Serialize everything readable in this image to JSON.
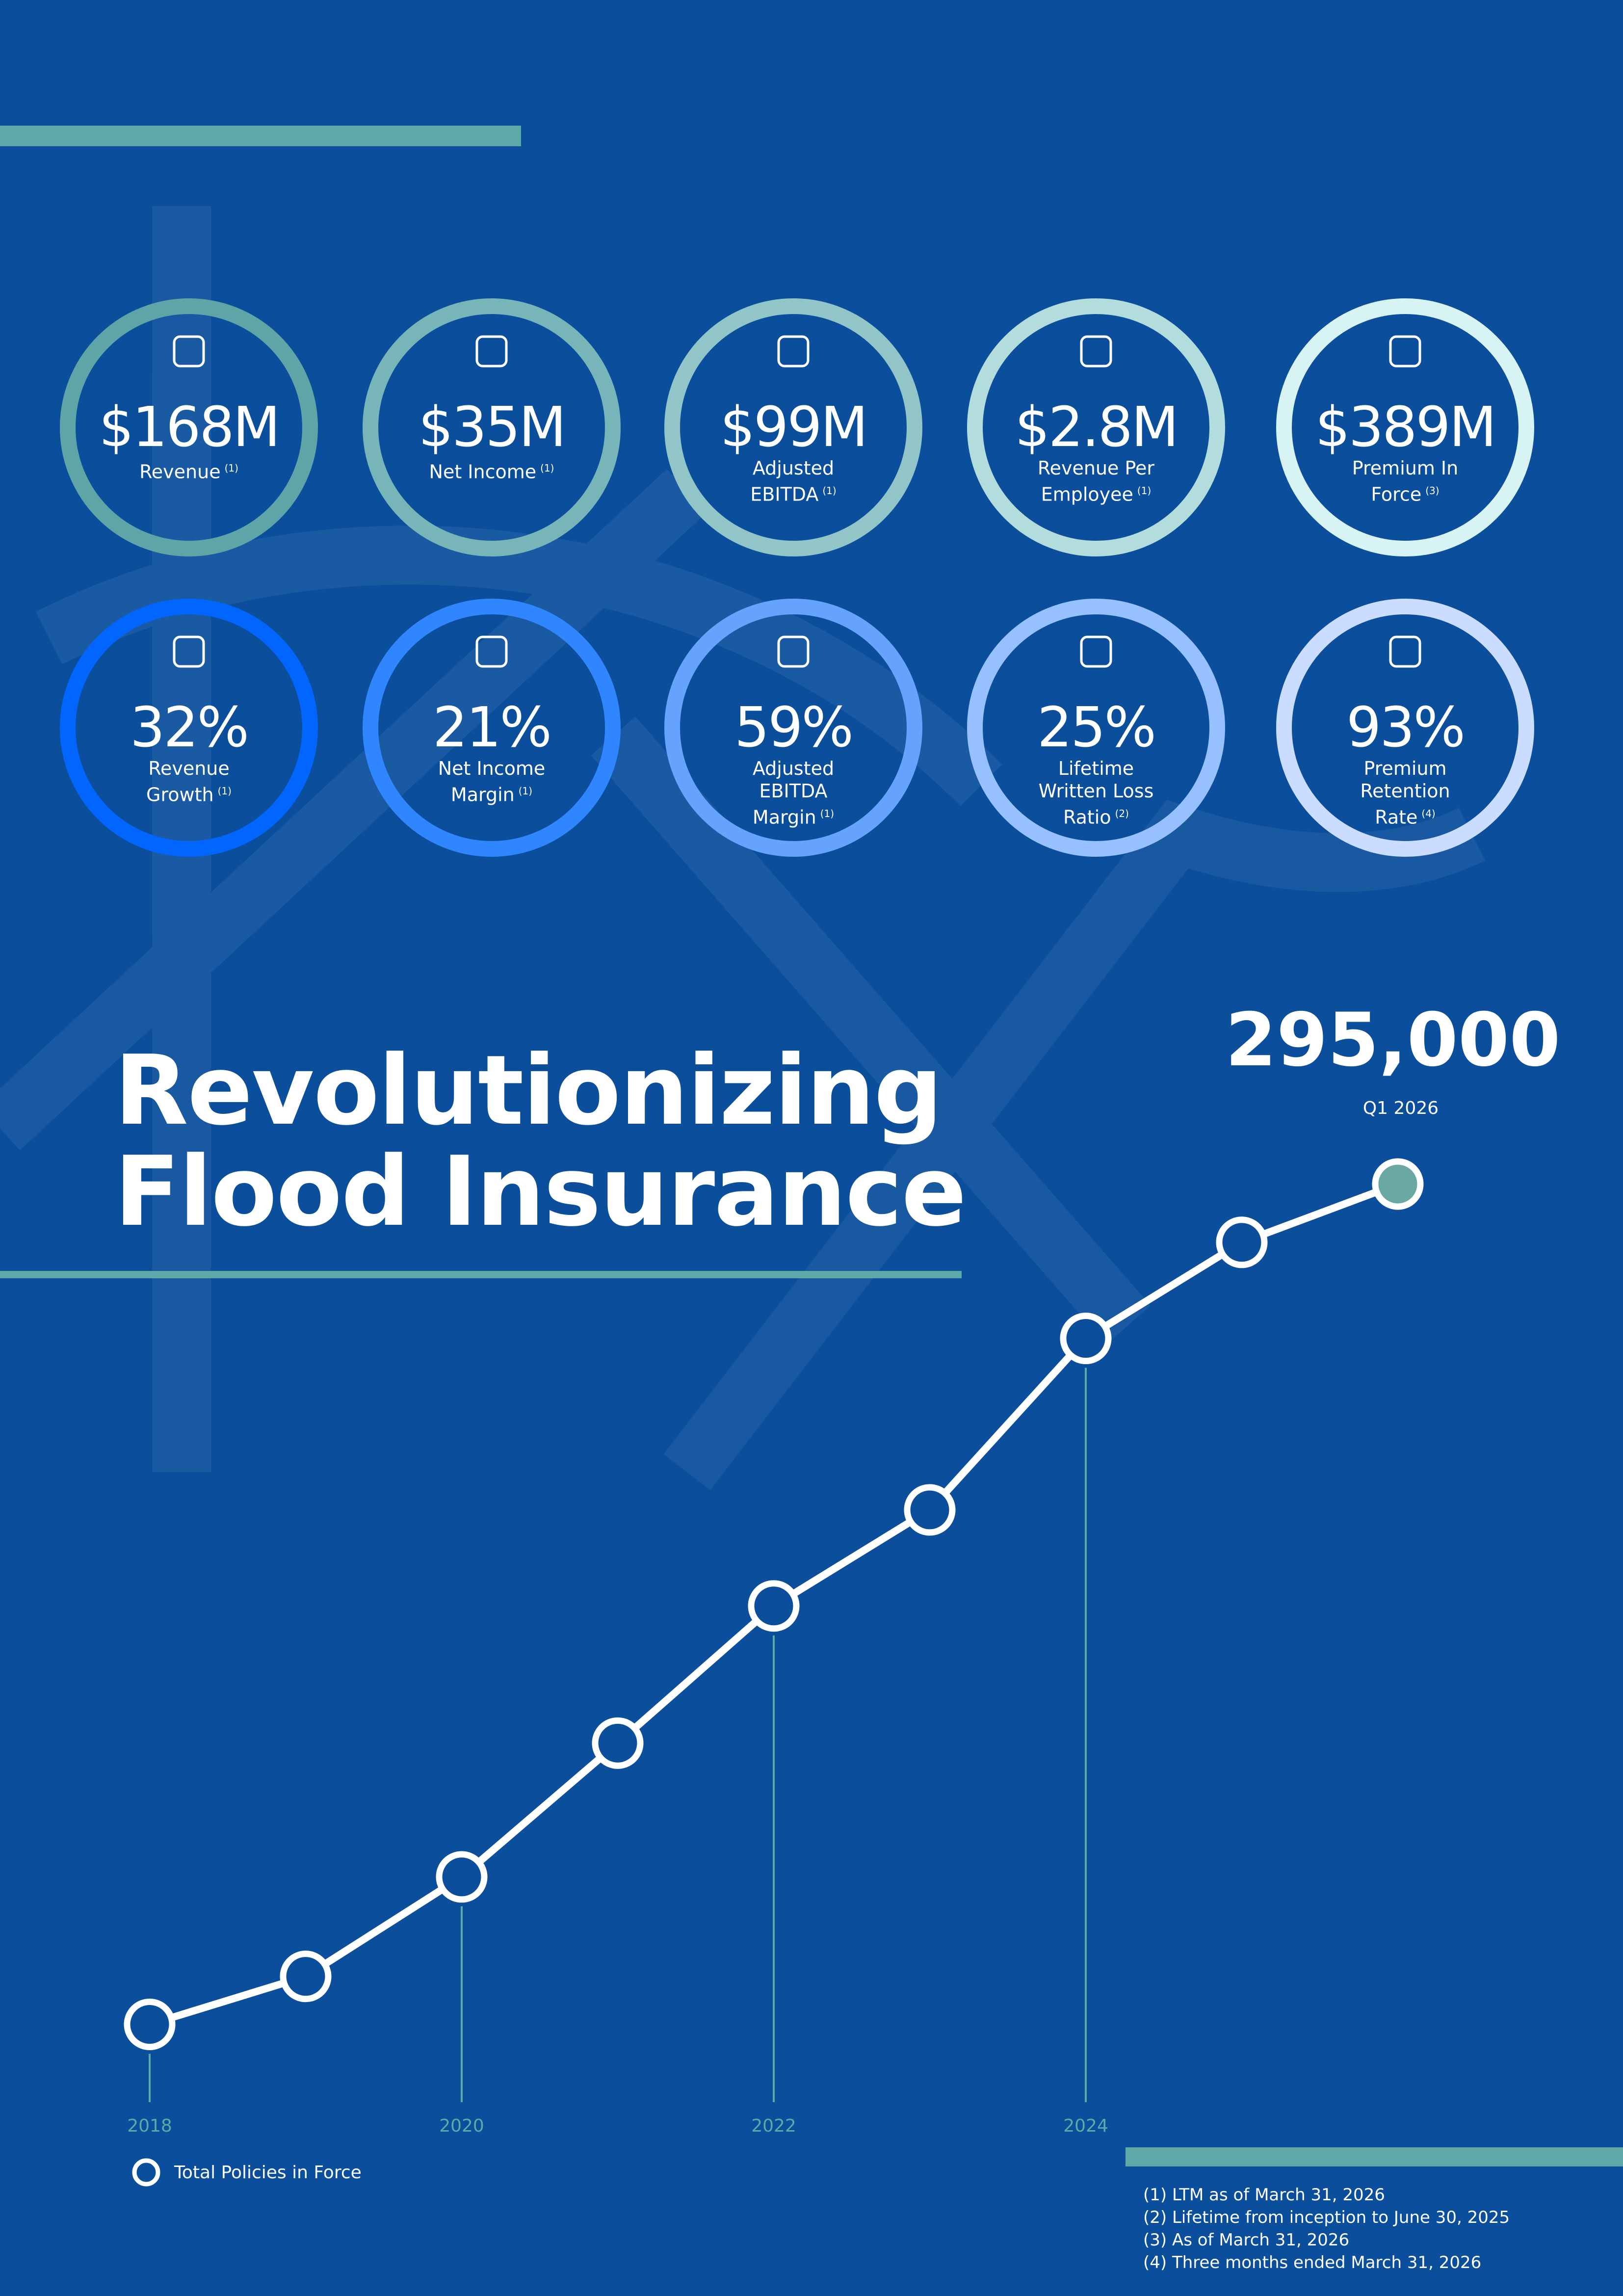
{
  "kpis": [
    {
      "value": "$168M",
      "label": "Revenue",
      "note": "(1)",
      "ring_color": "#5fa5a8"
    },
    {
      "value": "$35M",
      "label": "Net Income",
      "note": "(1)",
      "ring_color": "#78b5b8"
    },
    {
      "value": "$99M",
      "label": "Adjusted EBITDA",
      "note": "(1)",
      "ring_color": "#92c5c8"
    },
    {
      "value": "$2.8M",
      "label": "Revenue Per Employee",
      "note": "(1)",
      "ring_color": "#b3dcdc"
    },
    {
      "value": "$389M",
      "label": "Premium In Force",
      "note": "(3)",
      "ring_color": "#d8f3f3"
    },
    {
      "value": "32%",
      "label": "Revenue Growth",
      "note": "(1)",
      "ring_color": "#0066ff"
    },
    {
      "value": "21%",
      "label": "Net Income Margin",
      "note": "(1)",
      "ring_color": "#2f86ff"
    },
    {
      "value": "59%",
      "label": "Adjusted EBITDA Margin",
      "note": "(1)",
      "ring_color": "#66a3ff"
    },
    {
      "value": "25%",
      "label": "Lifetime Written Loss Ratio",
      "note": "(2)",
      "ring_color": "#96c0ff"
    },
    {
      "value": "93%",
      "label": "Premium Retention Rate",
      "note": "(4)",
      "ring_color": "#cadcff"
    }
  ],
  "chart_data": {
    "type": "line",
    "title": "Revolutionizing Flood Insurance",
    "categories": [
      "2018",
      null,
      "2020",
      null,
      "2022",
      null,
      "2024",
      null,
      "Q1 2026"
    ],
    "series": [
      {
        "name": "Total Policies in Force",
        "color": "#ffffff",
        "values": [
          50000,
          64000,
          93000,
          132000,
          172000,
          200000,
          250000,
          278000,
          295000
        ],
        "value_labels": [
          null,
          null,
          null,
          null,
          null,
          null,
          null,
          null,
          "295,000"
        ]
      }
    ],
    "ylim": [
      0,
      300000
    ]
  },
  "footnotes": [
    "(1) LTM as of March 31, 2026",
    "(2) Lifetime from inception to June 30, 2025",
    "(3) As of March 31, 2026",
    "(4) Three months ended March 31, 2026"
  ]
}
